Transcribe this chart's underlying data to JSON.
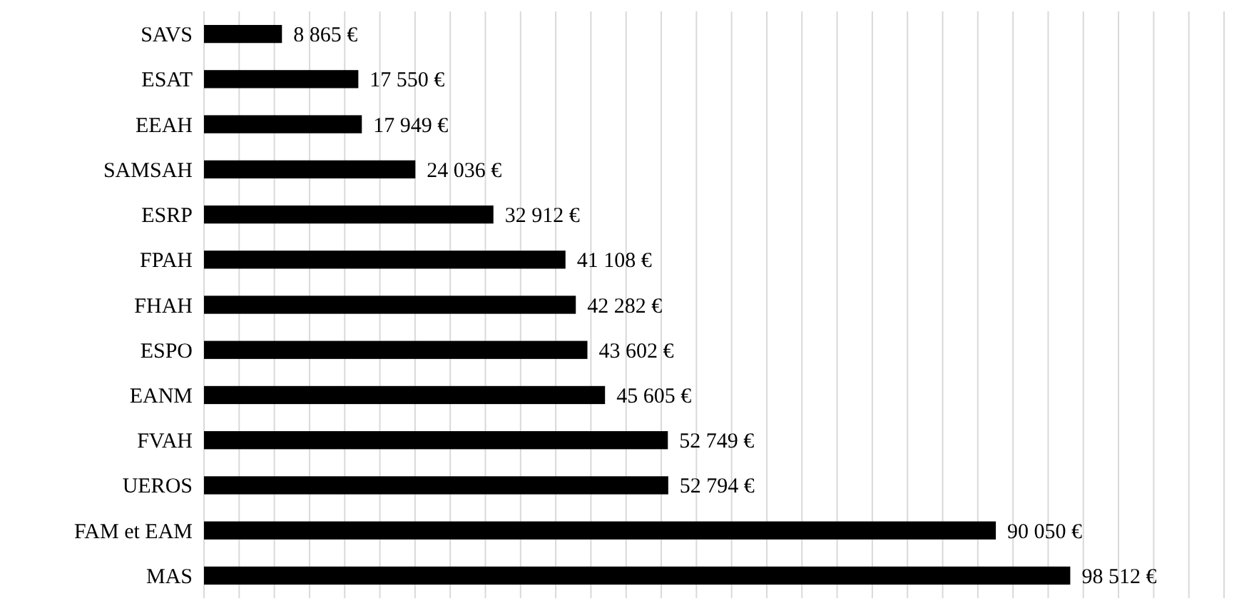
{
  "chart_data": {
    "type": "bar",
    "orientation": "horizontal",
    "categories": [
      "SAVS",
      "ESAT",
      "EEAH",
      "SAMSAH",
      "ESRP",
      "FPAH",
      "FHAH",
      "ESPO",
      "EANM",
      "FVAH",
      "UEROS",
      "FAM et EAM",
      "MAS"
    ],
    "values": [
      8865,
      17550,
      17949,
      24036,
      32912,
      41108,
      42282,
      43602,
      45605,
      52749,
      52794,
      90050,
      98512
    ],
    "value_labels": [
      "8 865 €",
      "17 550 €",
      "17 949 €",
      "24 036 €",
      "32 912 €",
      "41 108 €",
      "42 282 €",
      "43 602 €",
      "45 605 €",
      "52 749 €",
      "52 794 €",
      "90 050 €",
      "98 512 €"
    ],
    "color": "#000000",
    "xlim": [
      0,
      116000
    ],
    "xticks": [
      {
        "value": 0,
        "label": null
      },
      {
        "value": 4000,
        "label": null
      },
      {
        "value": 8000,
        "label": null
      },
      {
        "value": 12000,
        "label": null
      },
      {
        "value": 16000,
        "label": null
      },
      {
        "value": 20000,
        "label": null
      },
      {
        "value": 24000,
        "label": null
      },
      {
        "value": 28000,
        "label": null
      },
      {
        "value": 32000,
        "label": null
      },
      {
        "value": 36000,
        "label": null
      },
      {
        "value": 40000,
        "label": null
      },
      {
        "value": 44000,
        "label": null
      },
      {
        "value": 48000,
        "label": null
      },
      {
        "value": 52000,
        "label": null
      },
      {
        "value": 56000,
        "label": null
      },
      {
        "value": 60000,
        "label": null
      },
      {
        "value": 64000,
        "label": null
      },
      {
        "value": 68000,
        "label": null
      },
      {
        "value": 72000,
        "label": null
      },
      {
        "value": 76000,
        "label": null
      },
      {
        "value": 80000,
        "label": null
      },
      {
        "value": 84000,
        "label": null
      },
      {
        "value": 88000,
        "label": null
      },
      {
        "value": 92000,
        "label": null
      },
      {
        "value": 96000,
        "label": null
      },
      {
        "value": 100000,
        "label": null
      },
      {
        "value": 104000,
        "label": null
      },
      {
        "value": 108000,
        "label": null
      },
      {
        "value": 112000,
        "label": null
      },
      {
        "value": 116000,
        "label": null
      }
    ],
    "grid": "x",
    "tick_labels": "y"
  }
}
